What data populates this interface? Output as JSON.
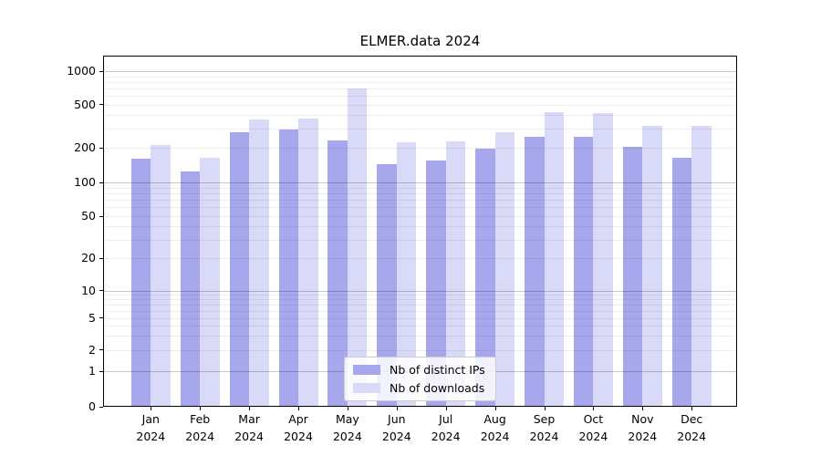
{
  "chart_data": {
    "type": "bar",
    "title": "ELMER.data 2024",
    "year": "2024",
    "months": [
      "Jan",
      "Feb",
      "Mar",
      "Apr",
      "May",
      "Jun",
      "Jul",
      "Aug",
      "Sep",
      "Oct",
      "Nov",
      "Dec"
    ],
    "categories": [
      "Jan 2024",
      "Feb 2024",
      "Mar 2024",
      "Apr 2024",
      "May 2024",
      "Jun 2024",
      "Jul 2024",
      "Aug 2024",
      "Sep 2024",
      "Oct 2024",
      "Nov 2024",
      "Dec 2024"
    ],
    "series": [
      {
        "name": "Nb of distinct IPs",
        "color": "#a7a7ee",
        "values": [
          160,
          125,
          275,
          295,
          235,
          145,
          155,
          195,
          250,
          250,
          205,
          165
        ]
      },
      {
        "name": "Nb of downloads",
        "color": "#d9d9f8",
        "values": [
          210,
          165,
          365,
          370,
          700,
          225,
          230,
          275,
          425,
          415,
          320,
          315
        ]
      }
    ],
    "xlabel": "",
    "ylabel": "",
    "yscale": "symlog",
    "ylim": [
      0,
      1400
    ],
    "yticks": [
      0,
      1,
      2,
      5,
      10,
      20,
      50,
      100,
      200,
      500,
      1000
    ],
    "grid": true,
    "legend": {
      "position": "lower center",
      "entries": [
        "Nb of distinct IPs",
        "Nb of downloads"
      ]
    },
    "colors": {
      "bar_distinct_ips": "#a7a7ee",
      "bar_downloads": "#d9d9f8",
      "grid_minor": "#ececec",
      "grid_major": "#c6c6c6",
      "axis": "#000000",
      "legend_border": "#cccccc"
    }
  }
}
